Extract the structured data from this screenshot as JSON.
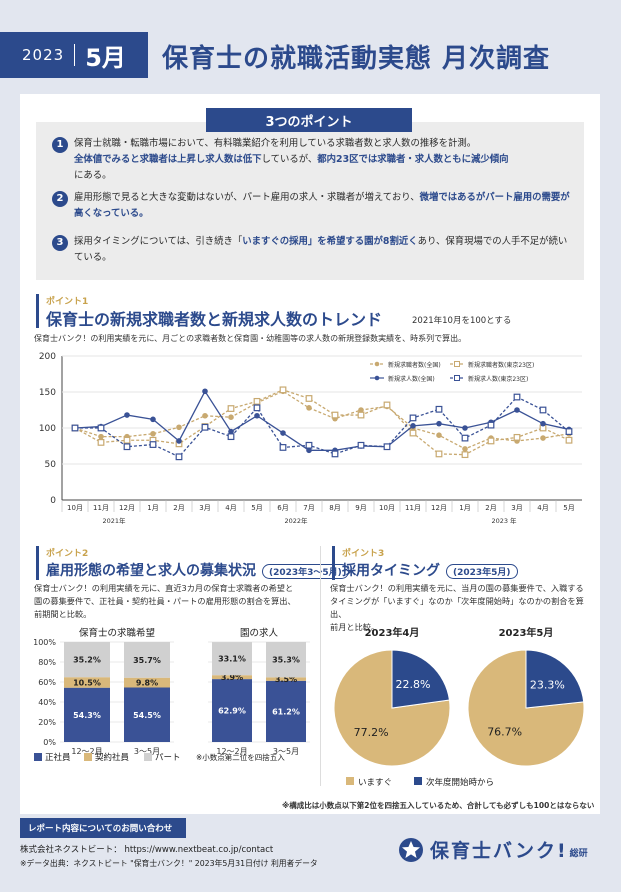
{
  "header": {
    "year": "2023",
    "month": "5月",
    "title": "保育士の就職活動実態 月次調査"
  },
  "points_box": {
    "tag": "3つのポイント",
    "items": [
      {
        "num": "1",
        "line1": "保育士就職・転職市場において、有料職業紹介を利用している求職者数と求人数の推移を計測。",
        "hl_a": "全体値でみると求職者は上昇し求人数は低下",
        "mid": "しているが、",
        "hl_b": "都内23区では求職者・求人数ともに減少傾向",
        "tail": "にある。"
      },
      {
        "num": "2",
        "text_a": "雇用形態で見ると大きな変動はないが、パート雇用の求人・求職者が増えており、",
        "hl_a": "微増ではあるがパート雇用の需要が高くなっている。"
      },
      {
        "num": "3",
        "text_a": "採用タイミングについては、引き続き「",
        "hl_a": "いますぐの採用」を希望する園が8割近く",
        "text_b": "あり、保育現場での人手不足が続いている。"
      }
    ]
  },
  "section1": {
    "small": "ポイント1",
    "title": "保育士の新規求職者数と新規求人数のトレンド",
    "subtitle": "2021年10月を100とする",
    "note": "保育士バンク！の利用実績を元に、月ごとの求職者数と保育園・幼稚園等の求人数の新規登録数実績を、時系列で算出。"
  },
  "chart_data": [
    {
      "type": "line",
      "y_ticks": [
        "0",
        "50",
        "100",
        "150",
        "200"
      ],
      "ylim": [
        0,
        200
      ],
      "x": [
        "10月",
        "11月",
        "12月",
        "1月",
        "2月",
        "3月",
        "4月",
        "5月",
        "6月",
        "7月",
        "8月",
        "9月",
        "10月",
        "11月",
        "12月",
        "1月",
        "2月",
        "3月",
        "4月",
        "5月"
      ],
      "year_labels": [
        "2021年",
        "2022年",
        "2023 年"
      ],
      "legend_placement": "top-right",
      "series": [
        {
          "name": "新規求職者数(全国)",
          "color": "#c8a970",
          "dash": "3,2",
          "marker": "circle",
          "values": [
            100,
            88,
            88,
            92,
            101,
            117,
            115,
            135,
            151,
            128,
            113,
            125,
            130,
            100,
            90,
            71,
            86,
            82,
            86,
            92
          ]
        },
        {
          "name": "新規求職者数(東京23区)",
          "color": "#c8a970",
          "dash": "3,2",
          "marker": "square",
          "values": [
            100,
            80,
            83,
            83,
            78,
            102,
            127,
            137,
            153,
            141,
            118,
            118,
            132,
            93,
            64,
            63,
            82,
            87,
            100,
            83
          ]
        },
        {
          "name": "新規求人数(全国)",
          "color": "#3a5296",
          "dash": "",
          "marker": "circle",
          "values": [
            100,
            102,
            118,
            112,
            82,
            151,
            95,
            117,
            93,
            69,
            69,
            75,
            74,
            103,
            106,
            100,
            108,
            125,
            106,
            98
          ]
        },
        {
          "name": "新規求人数(東京23区)",
          "color": "#3a5296",
          "dash": "3,2",
          "marker": "square",
          "values": [
            100,
            100,
            74,
            77,
            60,
            101,
            88,
            128,
            73,
            76,
            64,
            76,
            74,
            114,
            126,
            86,
            104,
            143,
            125,
            95
          ]
        }
      ]
    },
    {
      "type": "bar",
      "title": "保育士の求職希望",
      "stacked": true,
      "categories": [
        "12〜2月",
        "3〜5月"
      ],
      "y_ticks": [
        "0%",
        "20%",
        "40%",
        "60%",
        "80%",
        "100%"
      ],
      "ylim": [
        0,
        100
      ],
      "series": [
        {
          "name": "正社員",
          "color": "#3a5296",
          "values": [
            54.3,
            54.5
          ]
        },
        {
          "name": "契約社員",
          "color": "#d9b87a",
          "values": [
            10.5,
            9.8
          ]
        },
        {
          "name": "パート",
          "color": "#d0d0d0",
          "values": [
            35.2,
            35.7
          ]
        }
      ],
      "labels": [
        [
          "54.3%",
          "10.5%",
          "35.2%"
        ],
        [
          "54.5%",
          "9.8%",
          "35.7%"
        ]
      ]
    },
    {
      "type": "bar",
      "title": "園の求人",
      "stacked": true,
      "categories": [
        "12〜2月",
        "3〜5月"
      ],
      "ylim": [
        0,
        100
      ],
      "series": [
        {
          "name": "正社員",
          "color": "#3a5296",
          "values": [
            62.9,
            61.2
          ]
        },
        {
          "name": "契約社員",
          "color": "#d9b87a",
          "values": [
            3.9,
            3.5
          ]
        },
        {
          "name": "パート",
          "color": "#d0d0d0",
          "values": [
            33.1,
            35.3
          ]
        }
      ],
      "labels": [
        [
          "62.9%",
          "3.9%",
          "33.1%"
        ],
        [
          "61.2%",
          "3.5%",
          "35.3%"
        ]
      ]
    },
    {
      "type": "pie",
      "title": "2023年4月",
      "slices": [
        {
          "name": "いますぐ",
          "value": 77.2,
          "color": "#d9b87a"
        },
        {
          "name": "次年度開始時から",
          "value": 22.8,
          "color": "#2c4a8c"
        }
      ],
      "labels": [
        "77.2%",
        "22.8%"
      ]
    },
    {
      "type": "pie",
      "title": "2023年5月",
      "slices": [
        {
          "name": "いますぐ",
          "value": 76.7,
          "color": "#d9b87a"
        },
        {
          "name": "次年度開始時から",
          "value": 23.3,
          "color": "#2c4a8c"
        }
      ],
      "labels": [
        "76.7%",
        "23.3%"
      ]
    }
  ],
  "section2": {
    "small": "ポイント2",
    "title": "雇用形態の希望と求人の募集状況",
    "period": "(2023年3〜5月)",
    "desc1": "保育士バンク！の利用実績を元に、直近3カ月の保育士求職者の希望と",
    "desc2": "園の募集要件で、正社員・契約社員・パートの雇用形態の割合を算出、",
    "desc3": "前期間と比較。",
    "legend": [
      "正社員",
      "契約社員",
      "パート"
    ],
    "note": "※小数点第二位を四捨五入"
  },
  "section3": {
    "small": "ポイント3",
    "title": "採用タイミング",
    "period": "(2023年5月)",
    "desc1": "保育士バンク！の利用実績を元に、当月の園の募集要件で、入職する",
    "desc2": "タイミングが「いますぐ」なのか「次年度開始時」なのかの割合を算出、",
    "desc3": "前月と比較。",
    "legend": [
      "いますぐ",
      "次年度開始時から"
    ]
  },
  "bottom_note": "※構成比は小数点以下第2位を四捨五入しているため、合計しても必ずしも100とはならない",
  "footer": {
    "tag": "レポート内容についてのお問い合わせ",
    "company": "株式会社ネクストビート：",
    "url": "https://www.nextbeat.co.jp/contact",
    "source": "※データ出典：ネクストビート \"保育士バンク！\" 2023年5月31日付け 利用者データ",
    "logo": "保育士バンク!",
    "logo_sub": "総研"
  }
}
